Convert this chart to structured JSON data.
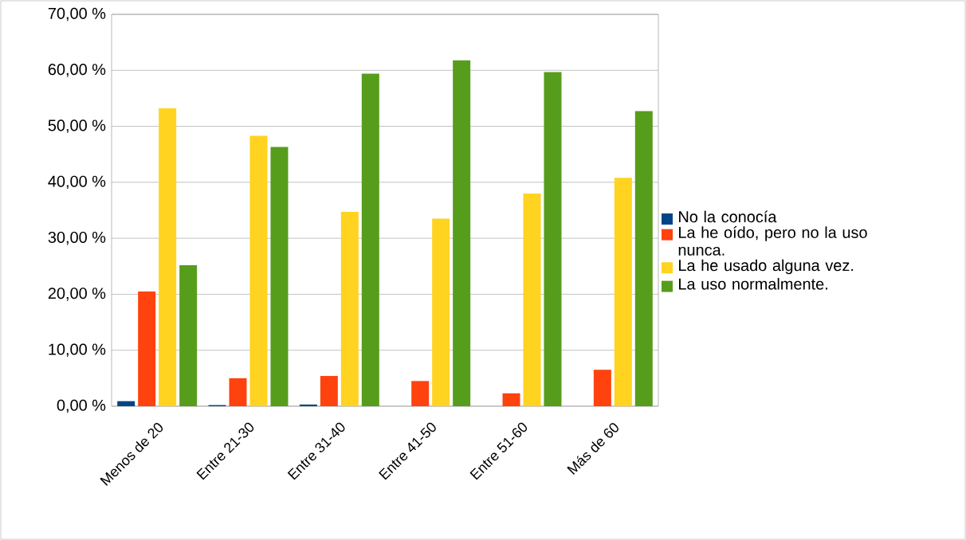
{
  "chart_data": {
    "type": "bar",
    "categories": [
      "Menos de 20",
      "Entre 21-30",
      "Entre 31-40",
      "Entre 41-50",
      "Entre 51-60",
      "Más de 60"
    ],
    "series": [
      {
        "name": "No la conocía",
        "color": "#004586",
        "values": [
          0.9,
          0.2,
          0.3,
          0,
          0,
          0
        ]
      },
      {
        "name": "La he oído, pero no la uso nunca.",
        "color": "#ff420e",
        "values": [
          20.5,
          5.0,
          5.4,
          4.5,
          2.3,
          6.5
        ]
      },
      {
        "name": "La he usado alguna vez.",
        "color": "#ffd320",
        "values": [
          53.2,
          48.3,
          34.7,
          33.5,
          38.0,
          40.8
        ]
      },
      {
        "name": "La uso normalmente.",
        "color": "#579d1c",
        "values": [
          25.2,
          46.3,
          59.4,
          61.8,
          59.7,
          52.7
        ]
      }
    ],
    "ylim": [
      0,
      70
    ],
    "yticks": [
      {
        "value": 0,
        "label": "0,00 %"
      },
      {
        "value": 10,
        "label": "10,00 %"
      },
      {
        "value": 20,
        "label": "20,00 %"
      },
      {
        "value": 30,
        "label": "30,00 %"
      },
      {
        "value": 40,
        "label": "40,00 %"
      },
      {
        "value": 50,
        "label": "50,00 %"
      },
      {
        "value": 60,
        "label": "60,00 %"
      },
      {
        "value": 70,
        "label": "70,00 %"
      }
    ],
    "grid": "y",
    "legend": "right"
  }
}
